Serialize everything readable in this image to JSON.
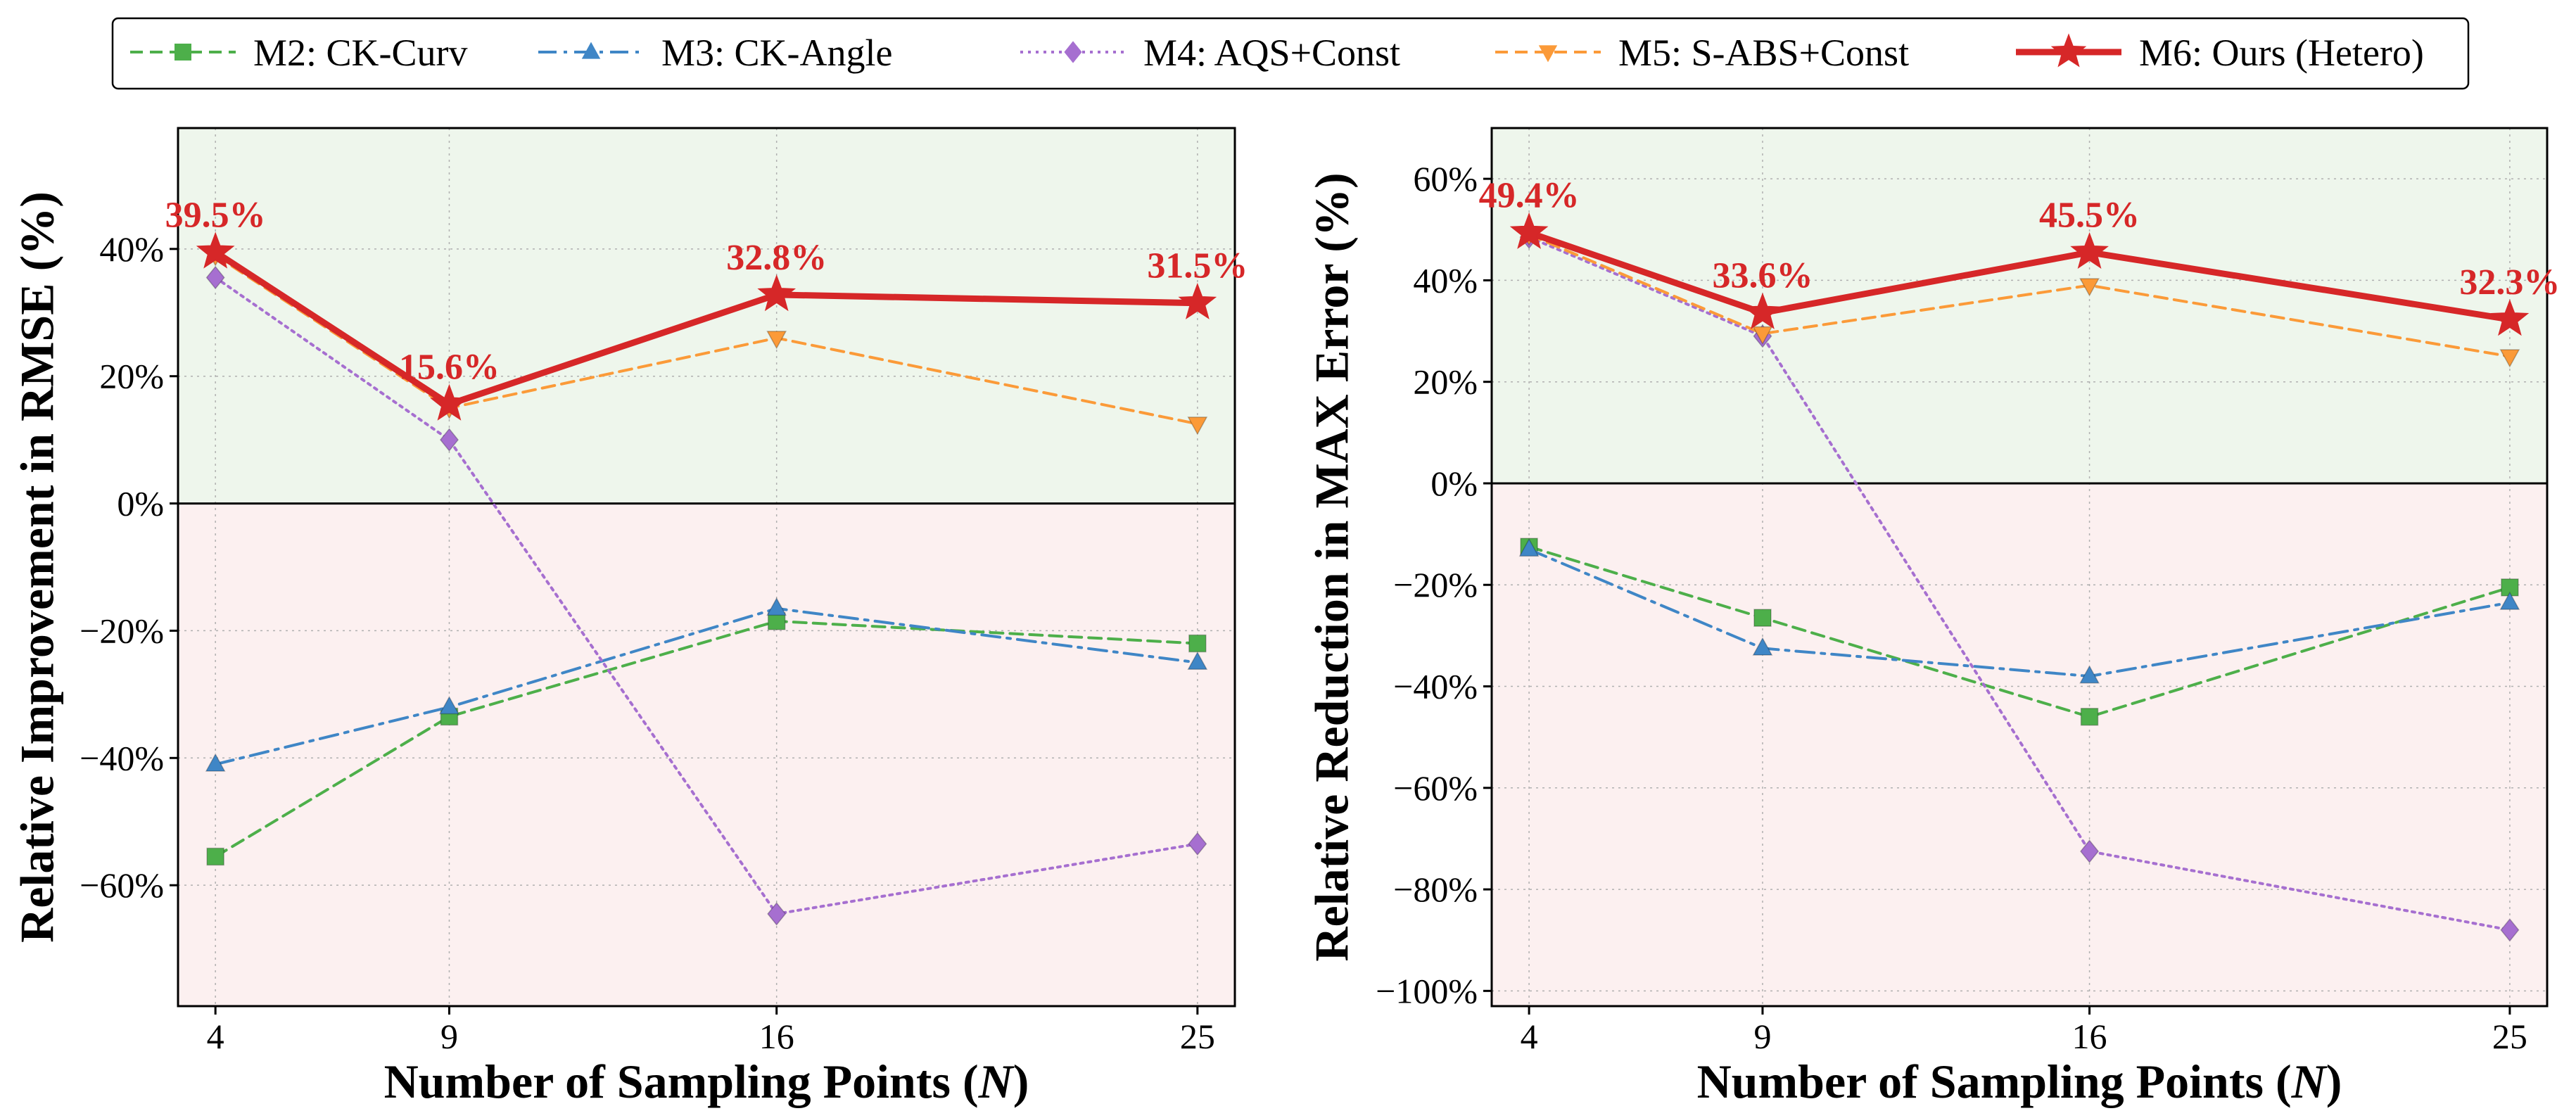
{
  "legend": {
    "placement": "top-center",
    "items": [
      {
        "name": "M2: CK-Curv",
        "series": "m2"
      },
      {
        "name": "M3: CK-Angle",
        "series": "m3"
      },
      {
        "name": "M4: AQS+Const",
        "series": "m4"
      },
      {
        "name": "M5: S-ABS+Const",
        "series": "m5"
      },
      {
        "name": "M6: Ours (Hetero)",
        "series": "m6"
      }
    ]
  },
  "series_styles": {
    "m2": {
      "color": "#4daf4a",
      "marker": "square",
      "dash": "18 10",
      "width": 4
    },
    "m3": {
      "color": "#3f86c6",
      "marker": "triangle-up",
      "dash": "26 10 5 10",
      "width": 4
    },
    "m4": {
      "color": "#a66fd0",
      "marker": "diamond",
      "dash": "4 7",
      "width": 4
    },
    "m5": {
      "color": "#fb9a38",
      "marker": "triangle-down",
      "dash": "18 10",
      "width": 4
    },
    "m6": {
      "color": "#d62728",
      "marker": "star",
      "dash": "",
      "width": 9
    }
  },
  "colors": {
    "positive_region": "#eef6ec",
    "negative_region": "#fcf0f0",
    "annotation": "#d62728"
  },
  "chart_data": [
    {
      "type": "line",
      "ylabel": "Relative Improvement in RMSE (%)",
      "xlabel_prefix": "Number of Sampling Points (",
      "xlabel_var": "N",
      "xlabel_suffix": ")",
      "x": [
        4,
        9,
        16,
        25
      ],
      "xtick_labels": [
        "4",
        "9",
        "16",
        "25"
      ],
      "xlim": [
        3.2,
        25.8
      ],
      "ylim": [
        -79,
        59
      ],
      "yticks": [
        -60,
        -40,
        -20,
        0,
        20,
        40
      ],
      "ytick_labels": [
        "−60%",
        "−40%",
        "−20%",
        "0%",
        "20%",
        "40%"
      ],
      "grid": true,
      "series": [
        {
          "id": "m2",
          "name": "M2: CK-Curv",
          "values": [
            -55.5,
            -33.5,
            -18.5,
            -22
          ]
        },
        {
          "id": "m3",
          "name": "M3: CK-Angle",
          "values": [
            -41,
            -32,
            -16.5,
            -25
          ]
        },
        {
          "id": "m4",
          "name": "M4: AQS+Const",
          "values": [
            35.5,
            10,
            -64.5,
            -53.5
          ]
        },
        {
          "id": "m5",
          "name": "M5: S-ABS+Const",
          "values": [
            39,
            15,
            26,
            12.5
          ]
        },
        {
          "id": "m6",
          "name": "M6: Ours (Hetero)",
          "values": [
            39.5,
            15.6,
            32.8,
            31.5
          ]
        }
      ],
      "annotations": [
        {
          "x": 4,
          "value": 39.5,
          "text": "39.5%"
        },
        {
          "x": 9,
          "value": 15.6,
          "text": "15.6%"
        },
        {
          "x": 16,
          "value": 32.8,
          "text": "32.8%"
        },
        {
          "x": 25,
          "value": 31.5,
          "text": "31.5%"
        }
      ]
    },
    {
      "type": "line",
      "ylabel": "Relative Reduction in MAX Error (%)",
      "xlabel_prefix": "Number of Sampling Points (",
      "xlabel_var": "N",
      "xlabel_suffix": ")",
      "x": [
        4,
        9,
        16,
        25
      ],
      "xtick_labels": [
        "4",
        "9",
        "16",
        "25"
      ],
      "xlim": [
        3.2,
        25.8
      ],
      "ylim": [
        -103,
        70
      ],
      "yticks": [
        -100,
        -80,
        -60,
        -40,
        -20,
        0,
        20,
        40,
        60
      ],
      "ytick_labels": [
        "−100%",
        "−80%",
        "−60%",
        "−40%",
        "−20%",
        "0%",
        "20%",
        "40%",
        "60%"
      ],
      "grid": true,
      "series": [
        {
          "id": "m2",
          "name": "M2: CK-Curv",
          "values": [
            -12.5,
            -26.5,
            -46,
            -20.5
          ]
        },
        {
          "id": "m3",
          "name": "M3: CK-Angle",
          "values": [
            -13,
            -32.5,
            -38,
            -23.5
          ]
        },
        {
          "id": "m4",
          "name": "M4: AQS+Const",
          "values": [
            48.5,
            29,
            -72.5,
            -88
          ]
        },
        {
          "id": "m5",
          "name": "M5: S-ABS+Const",
          "values": [
            49,
            29.5,
            39,
            25
          ]
        },
        {
          "id": "m6",
          "name": "M6: Ours (Hetero)",
          "values": [
            49.4,
            33.6,
            45.5,
            32.3
          ]
        }
      ],
      "annotations": [
        {
          "x": 4,
          "value": 49.4,
          "text": "49.4%"
        },
        {
          "x": 9,
          "value": 33.6,
          "text": "33.6%"
        },
        {
          "x": 16,
          "value": 45.5,
          "text": "45.5%"
        },
        {
          "x": 25,
          "value": 32.3,
          "text": "32.3%"
        }
      ]
    }
  ]
}
